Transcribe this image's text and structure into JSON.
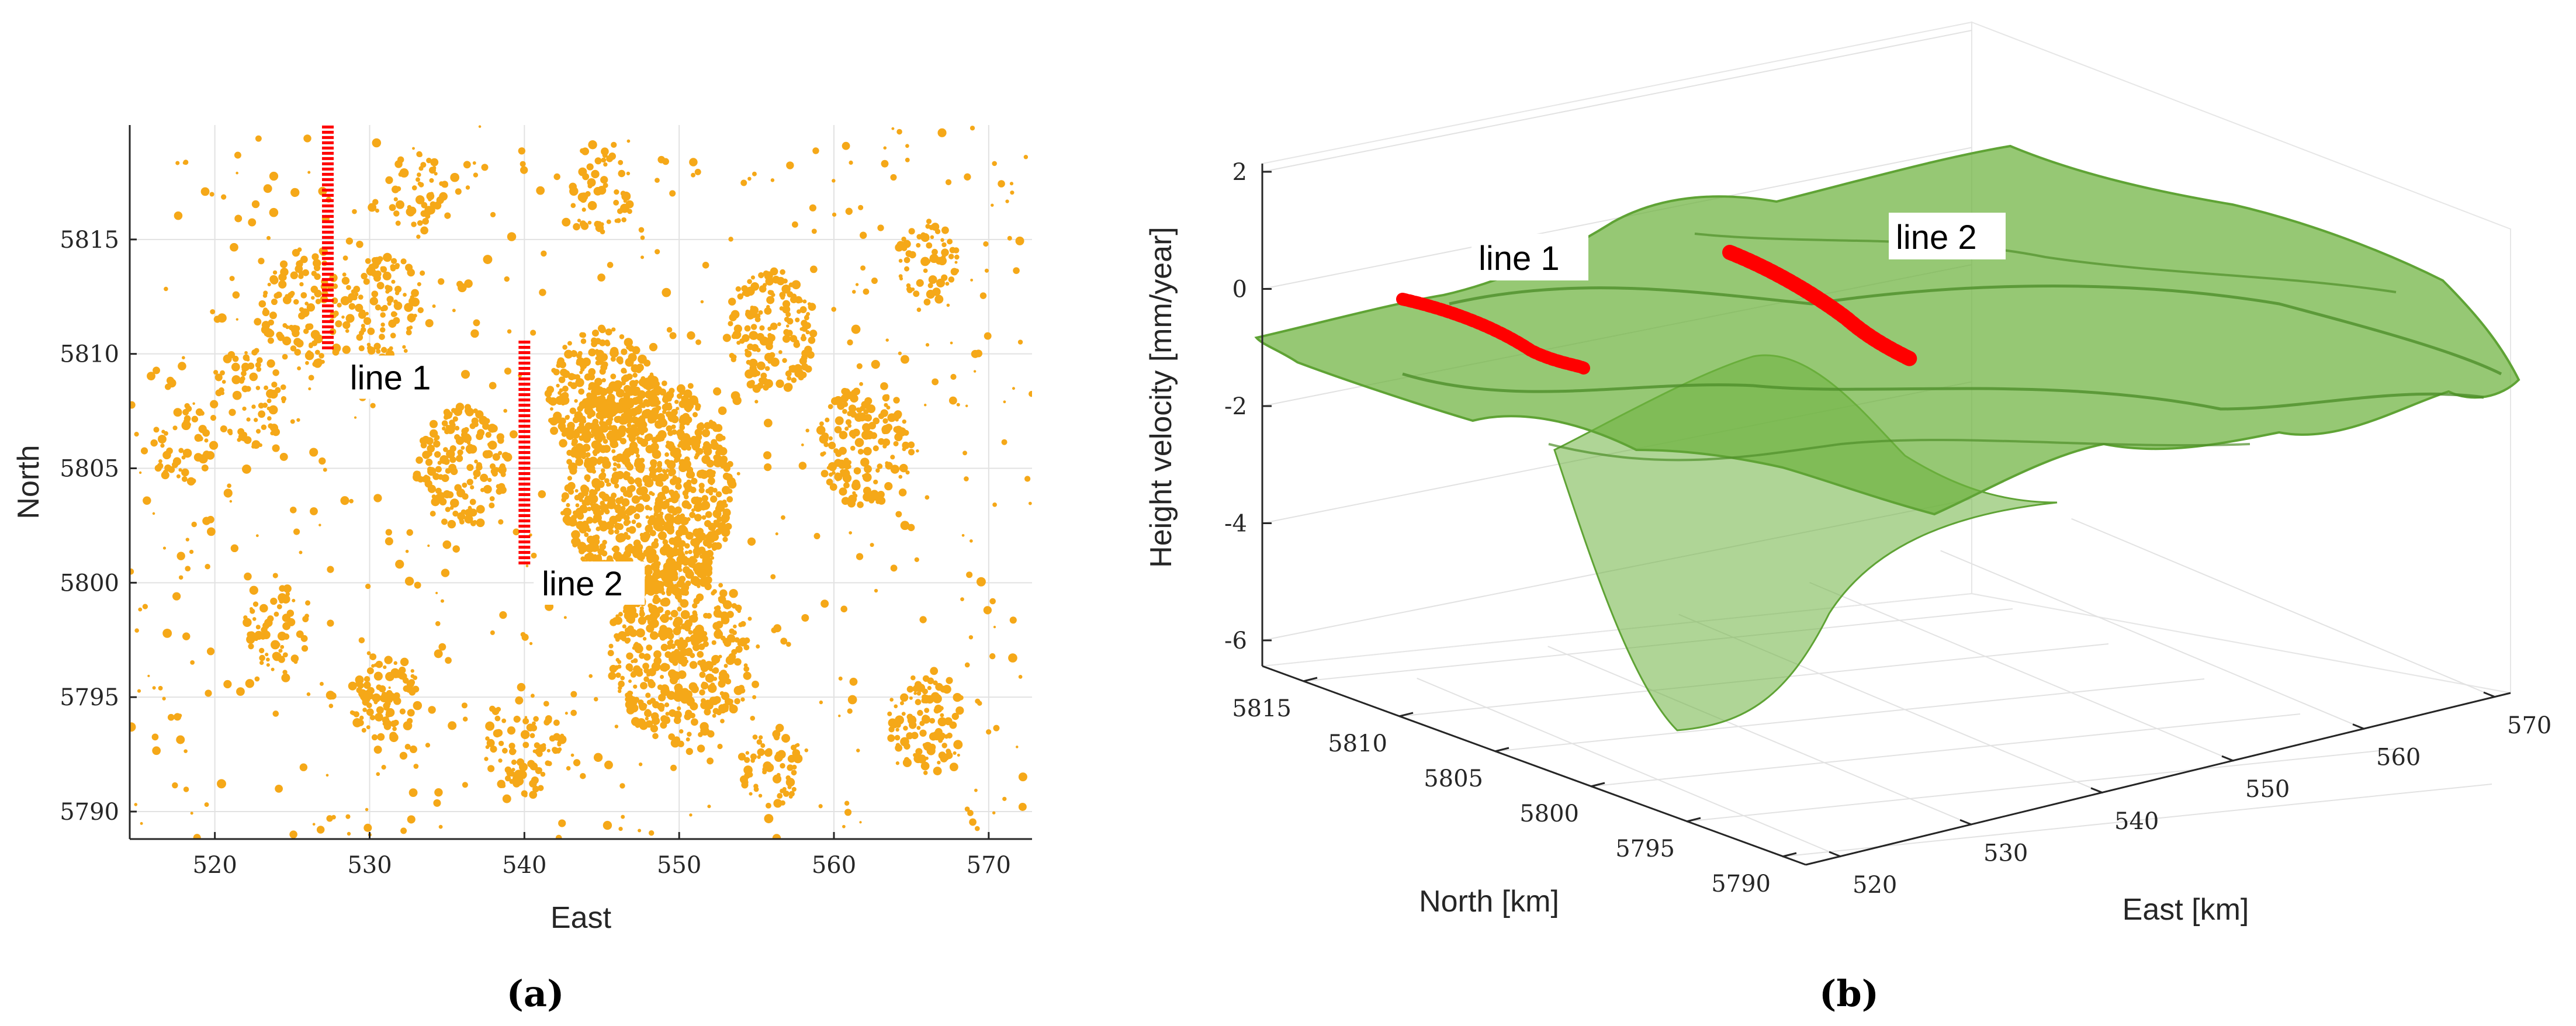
{
  "chart_data": [
    {
      "type": "scatter",
      "panel": "a",
      "caption": "(a)",
      "xlabel": "East",
      "ylabel": "North",
      "xlim": [
        514.5,
        572.8
      ],
      "ylim": [
        5788.8,
        5820
      ],
      "xticks": [
        520,
        530,
        540,
        550,
        560,
        570
      ],
      "yticks": [
        5790,
        5795,
        5800,
        5805,
        5810,
        5815
      ],
      "grid": true,
      "points_color": "#F5A818",
      "line_color": "#FF0000",
      "series": [
        {
          "name": "line 1",
          "x": [
            527.3,
            527.3
          ],
          "y": [
            5810.2,
            5820.0
          ]
        },
        {
          "name": "line 2",
          "x": [
            540.0,
            540.0
          ],
          "y": [
            5800.8,
            5810.6
          ]
        }
      ],
      "annotations": [
        {
          "text": "line 1",
          "x": 528.5,
          "y": 5808.6
        },
        {
          "text": "line 2",
          "x": 540.9,
          "y": 5799.6
        }
      ]
    },
    {
      "type": "surface",
      "panel": "b",
      "caption": "(b)",
      "xlabel": "East [km]",
      "ylabel": "North [km]",
      "zlabel": "Height velocity [mm/year]",
      "xticks": [
        520,
        530,
        540,
        550,
        560,
        570
      ],
      "yticks": [
        5790,
        5795,
        5800,
        5805,
        5810,
        5815
      ],
      "zticks": [
        2,
        0,
        -2,
        -4,
        -6
      ],
      "surface_color": "#6DB33F",
      "line_color": "#FF0000",
      "annotations": [
        {
          "text": "line 1"
        },
        {
          "text": "line 2"
        }
      ]
    }
  ]
}
